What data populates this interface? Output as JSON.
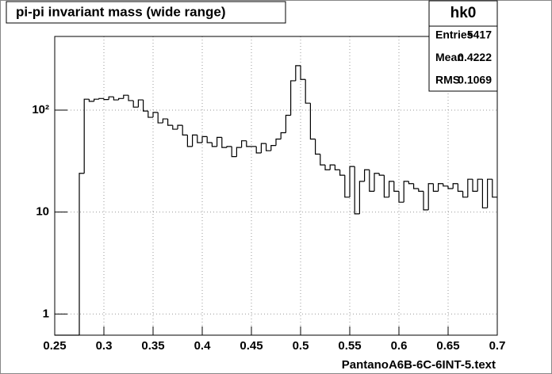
{
  "chart_data": {
    "type": "histogram",
    "title": "pi-pi invariant mass (wide range)",
    "x_label": "PantanoA6B-6C-6INT-5.text",
    "bins": [
      0.25,
      0.255,
      0.26,
      0.265,
      0.27,
      0.275,
      0.28,
      0.285,
      0.29,
      0.295,
      0.3,
      0.305,
      0.31,
      0.315,
      0.32,
      0.325,
      0.33,
      0.335,
      0.34,
      0.345,
      0.35,
      0.355,
      0.36,
      0.365,
      0.37,
      0.375,
      0.38,
      0.385,
      0.39,
      0.395,
      0.4,
      0.405,
      0.41,
      0.415,
      0.42,
      0.425,
      0.43,
      0.435,
      0.44,
      0.445,
      0.45,
      0.455,
      0.46,
      0.465,
      0.47,
      0.475,
      0.48,
      0.485,
      0.49,
      0.495,
      0.5,
      0.505,
      0.51,
      0.515,
      0.52,
      0.525,
      0.53,
      0.535,
      0.54,
      0.545,
      0.55,
      0.555,
      0.56,
      0.565,
      0.57,
      0.575,
      0.58,
      0.585,
      0.59,
      0.595,
      0.6,
      0.605,
      0.61,
      0.615,
      0.62,
      0.625,
      0.63,
      0.635,
      0.64,
      0.645,
      0.65,
      0.655,
      0.66,
      0.665,
      0.67,
      0.675,
      0.68,
      0.685,
      0.69,
      0.695,
      0.7
    ],
    "values": [
      0,
      0,
      0,
      0,
      0,
      24,
      128,
      122,
      128,
      130,
      127,
      135,
      126,
      130,
      140,
      124,
      107,
      126,
      98,
      85,
      95,
      75,
      82,
      71,
      65,
      71,
      57,
      44,
      57,
      48,
      55,
      48,
      44,
      54,
      43,
      44,
      35,
      43,
      50,
      44,
      44,
      38,
      47,
      40,
      45,
      52,
      60,
      89,
      194,
      273,
      200,
      117,
      52,
      37,
      29,
      26,
      29,
      26,
      23,
      14,
      28,
      9.6,
      20,
      26,
      16,
      24,
      23,
      14,
      20,
      16,
      12.5,
      20,
      19,
      17,
      16,
      10.5,
      19,
      16,
      19,
      18,
      17,
      19,
      16,
      14,
      21,
      16,
      21,
      11,
      21,
      14
    ],
    "color": "#000000",
    "xlim": [
      0.25,
      0.7
    ],
    "xticks": [
      0.25,
      0.3,
      0.35,
      0.4,
      0.45,
      0.5,
      0.55,
      0.6,
      0.65,
      0.7
    ],
    "ylim": [
      0.62,
      528
    ],
    "yticks": [
      1,
      10,
      {
        "value": 100,
        "label": "10²"
      }
    ],
    "log_y": true,
    "grid": true,
    "stats": {
      "title": "hk0",
      "rows": [
        {
          "label": "Entries",
          "value": 5417
        },
        {
          "label": "Mean",
          "value": 0.4222
        },
        {
          "label": "RMS",
          "value": 0.1069
        }
      ]
    }
  }
}
